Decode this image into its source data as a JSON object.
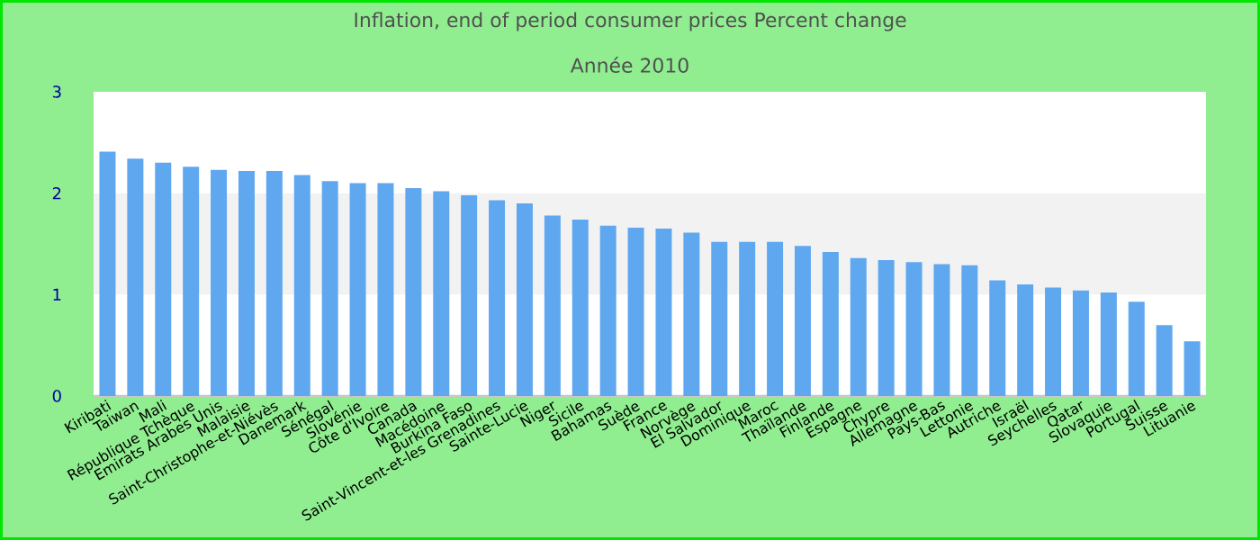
{
  "chart_data": {
    "type": "bar",
    "title": "Inflation, end of period consumer prices  Percent change",
    "subtitle": "Année 2010",
    "categories": [
      "Kiribati",
      "Taiwan",
      "Mali",
      "République Tchèque",
      "Emirats Arabes Unis",
      "Malaisie",
      "Saint-Christophe-et-Niévès",
      "Danemark",
      "Sénégal",
      "Slovénie",
      "Côte d'Ivoire",
      "Canada",
      "Macédoine",
      "Burkina Faso",
      "Saint-Vincent-et-les Grenadines",
      "Sainte-Lucie",
      "Niger",
      "Sicile",
      "Bahamas",
      "Suède",
      "France",
      "Norvège",
      "El Salvador",
      "Dominique",
      "Maroc",
      "Thaïlande",
      "Finlande",
      "Espagne",
      "Chypre",
      "Allemagne",
      "Pays-Bas",
      "Lettonie",
      "Autriche",
      "Israël",
      "Seychelles",
      "Qatar",
      "Slovaquie",
      "Portugal",
      "Suisse",
      "Lituanie"
    ],
    "values": [
      2.41,
      2.34,
      2.3,
      2.26,
      2.23,
      2.22,
      2.22,
      2.18,
      2.12,
      2.1,
      2.1,
      2.05,
      2.02,
      1.98,
      1.93,
      1.9,
      1.78,
      1.74,
      1.68,
      1.66,
      1.65,
      1.61,
      1.52,
      1.52,
      1.52,
      1.48,
      1.42,
      1.36,
      1.34,
      1.32,
      1.3,
      1.29,
      1.14,
      1.1,
      1.07,
      1.04,
      1.02,
      0.93,
      0.7,
      0.54
    ],
    "color": "#5fa8f0",
    "ylim": [
      0,
      3
    ],
    "yticks": [
      0,
      1,
      2,
      3
    ],
    "bands": [
      {
        "axis": "y",
        "from": 1,
        "to": 2,
        "color": "#f2f2f2"
      }
    ]
  }
}
